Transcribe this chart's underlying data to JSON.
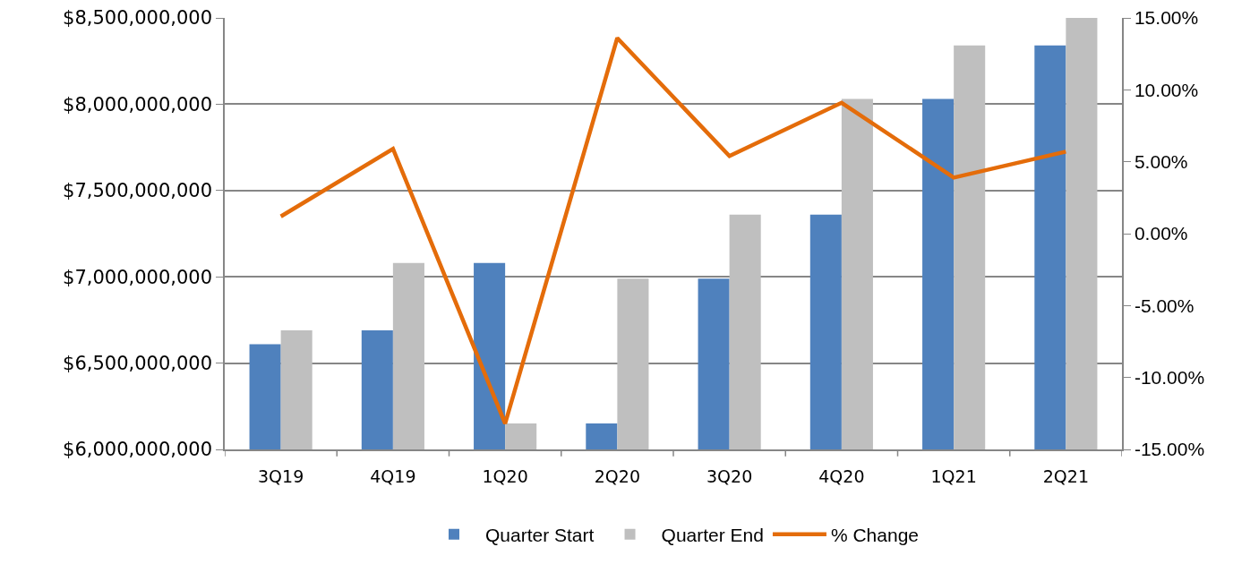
{
  "chart_data": {
    "type": "bar",
    "categories": [
      "3Q19",
      "4Q19",
      "1Q20",
      "2Q20",
      "3Q20",
      "4Q20",
      "1Q21",
      "2Q21"
    ],
    "series": [
      {
        "name": "Quarter Start",
        "color": "#4f81bd",
        "values": [
          6610000000,
          6690000000,
          7080000000,
          6150000000,
          6990000000,
          7360000000,
          8030000000,
          8340000000
        ]
      },
      {
        "name": "Quarter End",
        "color": "#bfbfbf",
        "values": [
          6690000000,
          7080000000,
          6150000000,
          6990000000,
          7360000000,
          8030000000,
          8340000000,
          8500000000
        ]
      },
      {
        "name": "% Change",
        "type": "line",
        "axis": "y2",
        "color": "#e46c0a",
        "values": [
          1.2,
          5.9,
          -13.2,
          13.6,
          5.4,
          9.1,
          3.9,
          5.7
        ]
      }
    ],
    "ylim": [
      6000000000,
      8500000000
    ],
    "yticks": [
      {
        "value": 6000000000,
        "label": "$6,000,000,000"
      },
      {
        "value": 6500000000,
        "label": "$6,500,000,000"
      },
      {
        "value": 7000000000,
        "label": "$7,000,000,000"
      },
      {
        "value": 7500000000,
        "label": "$7,500,000,000"
      },
      {
        "value": 8000000000,
        "label": "$8,000,000,000"
      },
      {
        "value": 8500000000,
        "label": "$8,500,000,000"
      }
    ],
    "y2lim": [
      -15,
      15
    ],
    "y2ticks": [
      {
        "value": -15,
        "label": "-15.00%"
      },
      {
        "value": -10,
        "label": "-10.00%"
      },
      {
        "value": -5,
        "label": "-5.00%"
      },
      {
        "value": 0,
        "label": "0.00%"
      },
      {
        "value": 5,
        "label": "5.00%"
      },
      {
        "value": 10,
        "label": "10.00%"
      },
      {
        "value": 15,
        "label": "15.00%"
      }
    ],
    "grid": "y",
    "legend": "bottom",
    "line_style": "solid"
  }
}
